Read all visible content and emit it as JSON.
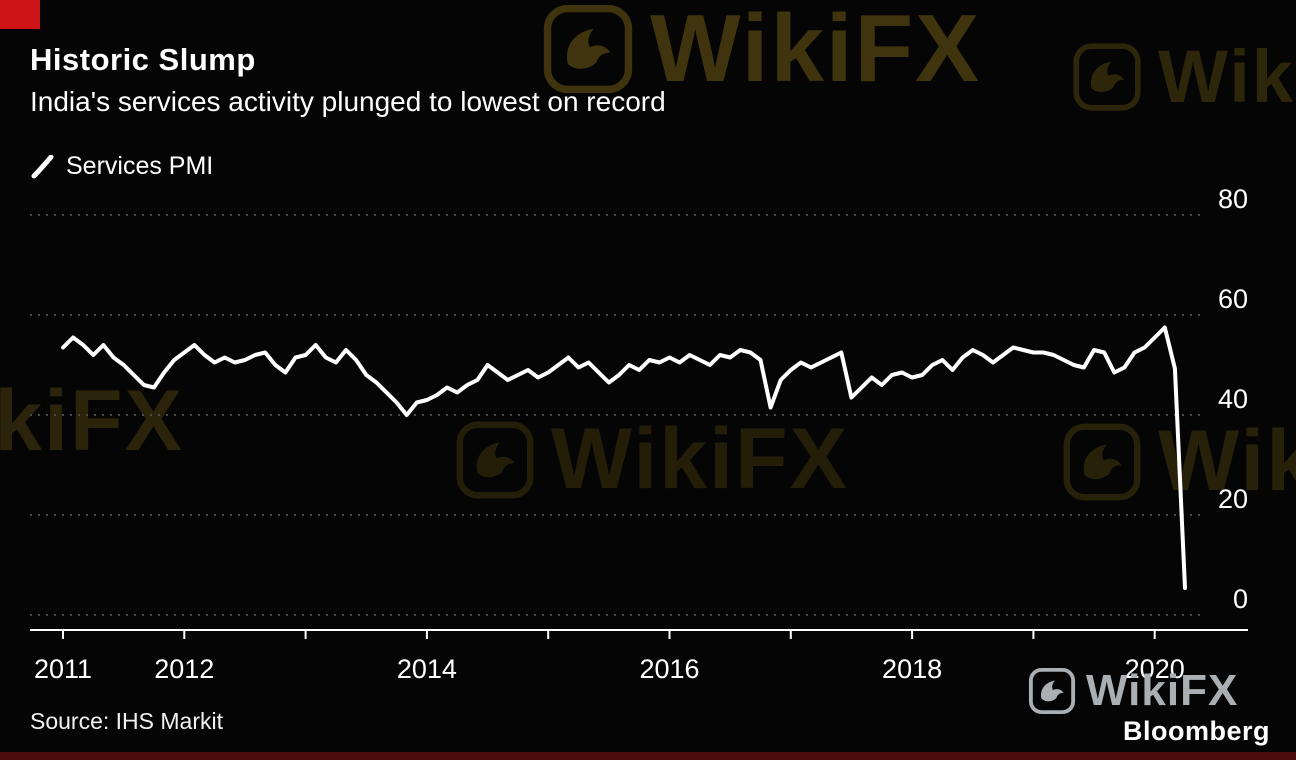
{
  "window": {
    "background": "#050505",
    "corner_mark_color": "#cf1417",
    "bottom_bar_color": "#4d0c0c"
  },
  "header": {
    "title": "Historic Slump",
    "subtitle": "India's services activity plunged to lowest on record"
  },
  "legend": {
    "label": "Services PMI",
    "marker": "line-stroke-icon",
    "color": "#ffffff"
  },
  "source": {
    "label": "Source:  IHS Markit"
  },
  "branding": {
    "bloomberg": "Bloomberg",
    "watermark": "WikiFX",
    "watermark_color": "#4a3d0f",
    "watermark_bright_color": "#a9afb2"
  },
  "chart_data": {
    "type": "line",
    "title": "Historic Slump",
    "subtitle": "India's services activity plunged to lowest on record",
    "source": "IHS Markit",
    "grid": "dotted-horizontal",
    "legend_position": "top-left",
    "y_axis_side": "right",
    "ylim": [
      0,
      80
    ],
    "yticks": [
      0,
      20,
      40,
      60,
      80
    ],
    "xticks_years": [
      2011,
      2012,
      2013,
      2014,
      2015,
      2016,
      2017,
      2018,
      2019,
      2020
    ],
    "xtick_labels": [
      "2011",
      "2012",
      "2014",
      "2016",
      "2018",
      "2020"
    ],
    "line_color": "#ffffff",
    "grid_color": "#4b4b4b",
    "series": [
      {
        "name": "Services PMI",
        "color": "#ffffff",
        "start": "2011-01",
        "frequency": "monthly",
        "values": [
          53.5,
          55.5,
          54.0,
          52.0,
          54.0,
          51.5,
          50.0,
          48.0,
          46.0,
          45.5,
          48.5,
          51.0,
          52.5,
          54.0,
          52.0,
          50.5,
          51.5,
          50.5,
          51.0,
          52.0,
          52.5,
          50.0,
          48.5,
          51.5,
          52.0,
          54.0,
          51.5,
          50.5,
          53.0,
          51.0,
          48.0,
          46.5,
          44.5,
          42.5,
          40.0,
          42.5,
          43.0,
          44.0,
          45.5,
          44.5,
          46.0,
          47.0,
          50.0,
          48.5,
          47.0,
          48.0,
          49.0,
          47.5,
          48.5,
          50.0,
          51.5,
          49.5,
          50.5,
          48.5,
          46.5,
          48.0,
          50.0,
          49.0,
          51.0,
          50.5,
          51.5,
          50.5,
          52.0,
          51.0,
          50.0,
          52.0,
          51.5,
          53.0,
          52.5,
          51.0,
          41.5,
          47.0,
          49.0,
          50.5,
          49.5,
          50.5,
          51.5,
          52.5,
          43.5,
          45.5,
          47.5,
          46.0,
          48.0,
          48.5,
          47.5,
          48.0,
          50.0,
          51.0,
          49.0,
          51.5,
          53.0,
          52.0,
          50.5,
          52.0,
          53.5,
          53.0,
          52.5,
          52.5,
          52.0,
          51.0,
          50.0,
          49.5,
          53.0,
          52.5,
          48.5,
          49.5,
          52.5,
          53.5,
          55.5,
          57.5,
          49.3,
          5.4
        ]
      }
    ]
  }
}
